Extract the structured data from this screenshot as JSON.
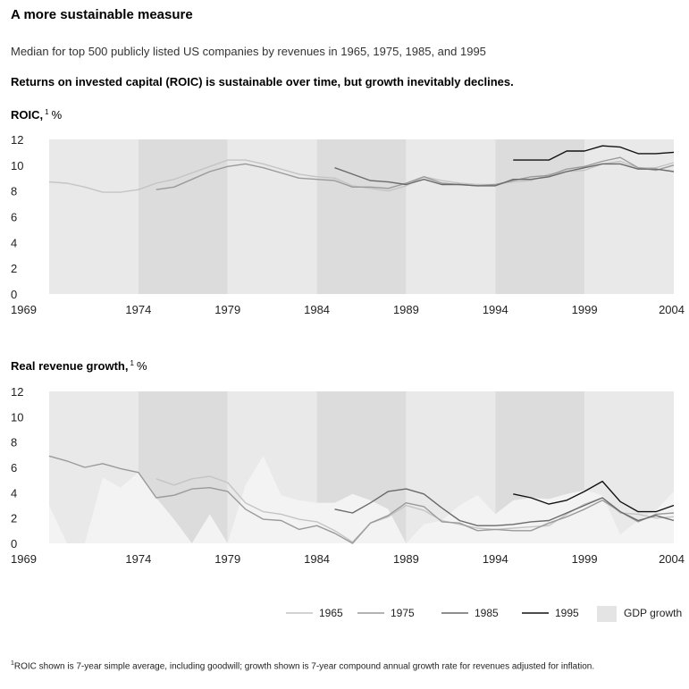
{
  "header": {
    "title": "A more sustainable measure",
    "subtitle": "Median for top 500 publicly listed US companies by revenues in 1965, 1975, 1985, and 1995",
    "headline": "Returns on invested capital (ROIC) is sustainable over time, but growth inevitably declines."
  },
  "footnote": {
    "marker": "1",
    "text": "ROIC shown is 7-year simple average, including goodwill; growth shown is 7-year compound annual growth rate for revenues adjusted for inflation."
  },
  "chart_data": [
    {
      "type": "line",
      "title": "ROIC,",
      "title_sup": "1",
      "title_unit": "%",
      "xlim": [
        1969,
        2004
      ],
      "ylim": [
        0,
        12
      ],
      "yticks": [
        "0",
        "2",
        "4",
        "6",
        "8",
        "10",
        "12"
      ],
      "xticks": [
        "1969",
        "1974",
        "1979",
        "1984",
        "1989",
        "1994",
        "1999",
        "2004"
      ],
      "series": [
        {
          "name": "1965",
          "color": "#c4c4c4",
          "x": [
            1969,
            1970,
            1971,
            1972,
            1973,
            1974,
            1975,
            1976,
            1977,
            1978,
            1979,
            1980,
            1981,
            1982,
            1983,
            1984,
            1985,
            1986,
            1987,
            1988,
            1989,
            1990,
            1991,
            1992,
            1993,
            1994,
            1995,
            1996,
            1997,
            1998,
            1999,
            2000,
            2001,
            2002,
            2003,
            2004
          ],
          "values": [
            8.7,
            8.6,
            8.3,
            7.9,
            7.9,
            8.1,
            8.6,
            8.9,
            9.4,
            9.9,
            10.4,
            10.4,
            10.1,
            9.7,
            9.3,
            9.1,
            9.0,
            8.4,
            8.2,
            8.0,
            8.4,
            9.1,
            8.8,
            8.6,
            8.5,
            8.5,
            8.7,
            8.8,
            9.3,
            9.5,
            9.6,
            10.1,
            10.3,
            9.8,
            9.8,
            10.2
          ]
        },
        {
          "name": "1975",
          "color": "#9a9a9a",
          "x": [
            1975,
            1976,
            1977,
            1978,
            1979,
            1980,
            1981,
            1982,
            1983,
            1984,
            1985,
            1986,
            1987,
            1988,
            1989,
            1990,
            1991,
            1992,
            1993,
            1994,
            1995,
            1996,
            1997,
            1998,
            1999,
            2000,
            2001,
            2002,
            2003,
            2004
          ],
          "values": [
            8.1,
            8.3,
            8.9,
            9.5,
            9.9,
            10.1,
            9.8,
            9.4,
            9.0,
            8.9,
            8.8,
            8.3,
            8.3,
            8.2,
            8.6,
            9.1,
            8.6,
            8.5,
            8.4,
            8.5,
            8.8,
            9.1,
            9.2,
            9.7,
            9.9,
            10.3,
            10.6,
            9.8,
            9.6,
            10.0
          ]
        },
        {
          "name": "1985",
          "color": "#6a6a6a",
          "x": [
            1985,
            1986,
            1987,
            1988,
            1989,
            1990,
            1991,
            1992,
            1993,
            1994,
            1995,
            1996,
            1997,
            1998,
            1999,
            2000,
            2001,
            2002,
            2003,
            2004
          ],
          "values": [
            9.8,
            9.3,
            8.8,
            8.7,
            8.5,
            8.9,
            8.5,
            8.5,
            8.4,
            8.4,
            8.9,
            8.9,
            9.1,
            9.5,
            9.8,
            10.1,
            10.1,
            9.7,
            9.7,
            9.5
          ]
        },
        {
          "name": "1995",
          "color": "#111111",
          "x": [
            1995,
            1996,
            1997,
            1998,
            1999,
            2000,
            2001,
            2002,
            2003,
            2004
          ],
          "values": [
            10.4,
            10.4,
            10.4,
            11.1,
            11.1,
            11.5,
            11.4,
            10.9,
            10.9,
            11.0
          ]
        }
      ]
    },
    {
      "type": "line",
      "title": "Real revenue growth,",
      "title_sup": "1",
      "title_unit": "%",
      "xlim": [
        1969,
        2004
      ],
      "ylim": [
        0,
        12
      ],
      "yticks": [
        "0",
        "2",
        "4",
        "6",
        "8",
        "10",
        "12"
      ],
      "xticks": [
        "1969",
        "1974",
        "1979",
        "1984",
        "1989",
        "1994",
        "1999",
        "2004"
      ],
      "area": {
        "name": "GDP growth",
        "color": "#e4e4e4",
        "x": [
          1969,
          1970,
          1971,
          1972,
          1973,
          1974,
          1975,
          1976,
          1977,
          1978,
          1979,
          1980,
          1981,
          1982,
          1983,
          1984,
          1985,
          1986,
          1987,
          1988,
          1989,
          1990,
          1991,
          1992,
          1993,
          1994,
          1995,
          1996,
          1997,
          1998,
          1999,
          2000,
          2001,
          2002,
          2003,
          2004
        ],
        "values": [
          3.0,
          0.0,
          0.0,
          5.2,
          4.4,
          5.6,
          3.6,
          1.9,
          0.0,
          2.3,
          0.0,
          4.6,
          6.9,
          3.8,
          3.4,
          3.2,
          3.2,
          3.9,
          3.4,
          2.7,
          0.0,
          1.5,
          1.8,
          3.0,
          3.8,
          2.3,
          3.4,
          3.6,
          3.5,
          3.9,
          4.2,
          3.8,
          0.7,
          1.8,
          2.6,
          4.1
        ]
      },
      "series": [
        {
          "name": "1965",
          "color": "#c4c4c4",
          "x": [
            1975,
            1976,
            1977,
            1978,
            1979,
            1980,
            1981,
            1982,
            1983,
            1984,
            1985,
            1986,
            1987,
            1988,
            1989,
            1990,
            1991,
            1992,
            1993,
            1994,
            1995,
            1996,
            1997,
            1998,
            1999,
            2000,
            2001,
            2002,
            2003,
            2004
          ],
          "values": [
            5.1,
            4.6,
            5.1,
            5.3,
            4.8,
            3.2,
            2.5,
            2.3,
            1.9,
            1.7,
            1.0,
            0.1,
            1.6,
            2.1,
            3.0,
            2.6,
            1.8,
            1.5,
            1.2,
            1.1,
            1.2,
            1.3,
            1.4,
            2.3,
            3.1,
            3.6,
            2.4,
            2.3,
            2.0,
            2.1
          ]
        },
        {
          "name": "1975",
          "color": "#9a9a9a",
          "x": [
            1969,
            1970,
            1971,
            1972,
            1973,
            1974,
            1975,
            1976,
            1977,
            1978,
            1979,
            1980,
            1981,
            1982,
            1983,
            1984,
            1985,
            1986,
            1987,
            1988,
            1989,
            1990,
            1991,
            1992,
            1993,
            1994,
            1995,
            1996,
            1997,
            1998,
            1999,
            2000,
            2001,
            2002,
            2003,
            2004
          ],
          "values": [
            6.9,
            6.5,
            6.0,
            6.3,
            5.9,
            5.6,
            3.6,
            3.8,
            4.3,
            4.4,
            4.1,
            2.7,
            1.9,
            1.8,
            1.1,
            1.4,
            0.8,
            0.0,
            1.6,
            2.2,
            3.2,
            2.9,
            1.7,
            1.6,
            1.0,
            1.1,
            1.0,
            1.0,
            1.6,
            2.1,
            2.7,
            3.4,
            2.5,
            1.7,
            2.3,
            2.4
          ]
        },
        {
          "name": "1985",
          "color": "#6a6a6a",
          "x": [
            1985,
            1986,
            1987,
            1988,
            1989,
            1990,
            1991,
            1992,
            1993,
            1994,
            1995,
            1996,
            1997,
            1998,
            1999,
            2000,
            2001,
            2002,
            2003,
            2004
          ],
          "values": [
            2.7,
            2.4,
            3.2,
            4.1,
            4.3,
            3.9,
            2.8,
            1.8,
            1.4,
            1.4,
            1.5,
            1.7,
            1.8,
            2.4,
            3.0,
            3.6,
            2.5,
            1.8,
            2.2,
            1.8
          ]
        },
        {
          "name": "1995",
          "color": "#111111",
          "x": [
            1995,
            1996,
            1997,
            1998,
            1999,
            2000,
            2001,
            2002,
            2003,
            2004
          ],
          "values": [
            3.9,
            3.6,
            3.1,
            3.4,
            4.1,
            4.9,
            3.3,
            2.5,
            2.5,
            3.0
          ]
        }
      ]
    }
  ]
}
